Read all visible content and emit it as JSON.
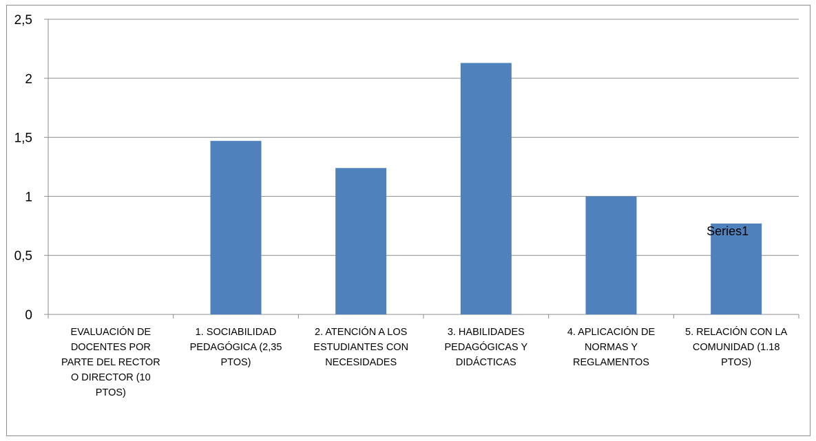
{
  "chart_data": {
    "type": "bar",
    "categories": [
      [
        "EVALUACIÓN DE",
        "DOCENTES  POR",
        "PARTE DEL RECTOR",
        "O DIRECTOR (10",
        "PTOS)"
      ],
      [
        "1. SOCIABILIDAD",
        "PEDAGÓGICA (2,35",
        "PTOS)"
      ],
      [
        "2. ATENCIÓN A LOS",
        "ESTUDIANTES CON",
        "NECESIDADES"
      ],
      [
        "3. HABILIDADES",
        "PEDAGÓGICAS Y",
        "DIDÁCTICAS"
      ],
      [
        "4. APLICACIÓN DE",
        "NORMAS Y",
        "REGLAMENTOS"
      ],
      [
        "5. RELACIÓN CON LA",
        "COMUNIDAD (1.18",
        "PTOS)"
      ]
    ],
    "series": [
      {
        "name": "Series1",
        "values": [
          null,
          1.47,
          1.24,
          2.13,
          1.0,
          0.77
        ]
      }
    ],
    "ylim": [
      0,
      2.5
    ],
    "yticks": [
      "0",
      "0,5",
      "1",
      "1,5",
      "2",
      "2,5"
    ],
    "grid": true,
    "bar_color": "#4f81bd",
    "grid_color": "#8c8c8c"
  }
}
